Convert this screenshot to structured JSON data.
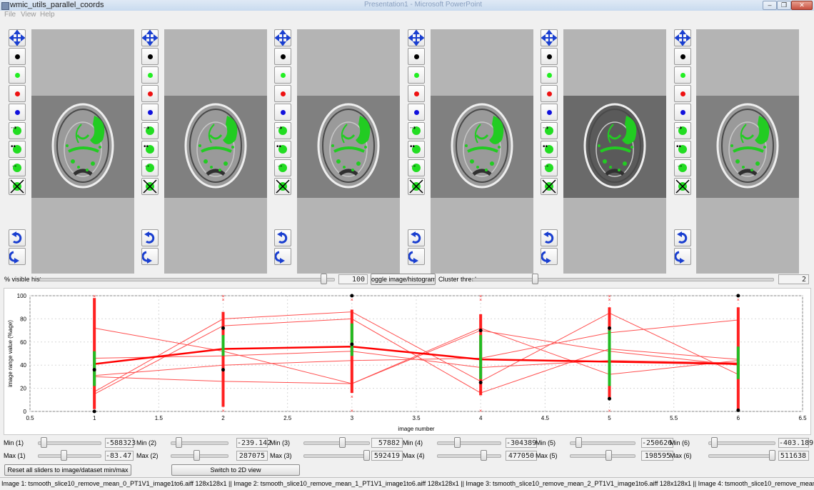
{
  "window": {
    "title": "wmic_utils_parallel_coords",
    "background_title": "Presentation1 - Microsoft PowerPoint",
    "menu": [
      "File",
      "View",
      "Help"
    ]
  },
  "panels": {
    "count": 6,
    "tool_icons": [
      "move-icon",
      "black-dot-icon",
      "green-dot-icon",
      "red-dot-icon",
      "blue-dot-icon",
      "grow-left-icon",
      "grow-both-icon",
      "grow-right-icon",
      "clear-icon",
      "undo-icon",
      "redo-icon"
    ]
  },
  "controls": {
    "visible_hist_label": "% visible hist",
    "visible_hist_value": "100",
    "visible_hist_level": 0.97,
    "toggle_button": "oggle image/histogram vie",
    "cluster_label": "Cluster thresl",
    "cluster_value": "2",
    "cluster_level": 0.2
  },
  "sliders": [
    {
      "min_label": "Min (1)",
      "min_value": "-588323",
      "min_level": 0.05,
      "max_label": "Max (1)",
      "max_value": "-83.47",
      "max_level": 0.4
    },
    {
      "min_label": "Min (2)",
      "min_value": "-239.142",
      "min_level": 0.1,
      "max_label": "Max (2)",
      "max_value": "287075",
      "max_level": 0.45
    },
    {
      "min_label": "Min (3)",
      "min_value": "57882",
      "min_level": 0.6,
      "max_label": "Max (3)",
      "max_value": "592419",
      "max_level": 1.0
    },
    {
      "min_label": "Min (4)",
      "min_value": "-304389",
      "min_level": 0.3,
      "max_label": "Max (4)",
      "max_value": "477050",
      "max_level": 0.75
    },
    {
      "min_label": "Min (5)",
      "min_value": "-250626",
      "min_level": 0.1,
      "max_label": "Max (5)",
      "max_value": "198595",
      "max_level": 0.6
    },
    {
      "min_label": "Min (6)",
      "min_value": "-403.189",
      "min_level": 0.05,
      "max_label": "Max (6)",
      "max_value": "511638",
      "max_level": 1.0
    }
  ],
  "buttons": {
    "reset": "Reset all sliders to image/dataset min/max",
    "switch": "Switch to 2D view"
  },
  "status": "Image 1: tsmooth_slice10_remove_mean_0_PT1V1_image1to6.aiff 128x128x1  || Image 2: tsmooth_slice10_remove_mean_1_PT1V1_image1to6.aiff 128x128x1  || Image 3: tsmooth_slice10_remove_mean_2_PT1V1_image1to6.aiff 128x128x1  || Image 4: tsmooth_slice10_remove_mean_3_PT1V1_image1to6.aiff 128x128x1  || Imag",
  "chart_data": {
    "type": "line",
    "title": "",
    "xlabel": "image number",
    "ylabel": "image range value (%age)",
    "xlim": [
      0.5,
      6.5
    ],
    "ylim": [
      0,
      100
    ],
    "xticks": [
      "0.5",
      "1",
      "1.5",
      "2",
      "2.5",
      "3",
      "3.5",
      "4",
      "4.5",
      "5",
      "5.5",
      "6",
      "6.5"
    ],
    "yticks": [
      "0",
      "20",
      "40",
      "60",
      "80",
      "100"
    ],
    "grid": true,
    "x": [
      1,
      2,
      3,
      4,
      5,
      6
    ],
    "series": [
      {
        "values": [
          41,
          54,
          56,
          45,
          43,
          41
        ],
        "color": "#ff0000",
        "bold": true
      },
      {
        "values": [
          72,
          52,
          24,
          72,
          32,
          44
        ],
        "color": "#ff5050"
      },
      {
        "values": [
          17,
          80,
          86,
          26,
          85,
          32
        ],
        "color": "#ff5050"
      },
      {
        "values": [
          15,
          74,
          80,
          16,
          54,
          45
        ],
        "color": "#ff5050"
      },
      {
        "values": [
          31,
          40,
          44,
          46,
          68,
          79
        ],
        "color": "#ff5050"
      },
      {
        "values": [
          30,
          26,
          24,
          70,
          52,
          40
        ],
        "color": "#ff5050"
      },
      {
        "values": [
          46,
          48,
          52,
          38,
          44,
          42
        ],
        "color": "#ff5050"
      }
    ],
    "columns": [
      {
        "x": 1,
        "green_range": [
          22,
          52
        ],
        "red_range": [
          2,
          98
        ],
        "dots": [
          0,
          36
        ]
      },
      {
        "x": 2,
        "green_range": [
          48,
          66
        ],
        "red_range": [
          4,
          86
        ],
        "dots": [
          36,
          72
        ]
      },
      {
        "x": 3,
        "green_range": [
          48,
          76
        ],
        "red_range": [
          16,
          88
        ],
        "dots": [
          58,
          100
        ]
      },
      {
        "x": 4,
        "green_range": [
          28,
          66
        ],
        "red_range": [
          14,
          84
        ],
        "dots": [
          25,
          70
        ]
      },
      {
        "x": 5,
        "green_range": [
          22,
          70
        ],
        "red_range": [
          10,
          90
        ],
        "dots": [
          11,
          72
        ]
      },
      {
        "x": 6,
        "green_range": [
          28,
          56
        ],
        "red_range": [
          2,
          90
        ],
        "dots": [
          1,
          100
        ]
      }
    ]
  }
}
